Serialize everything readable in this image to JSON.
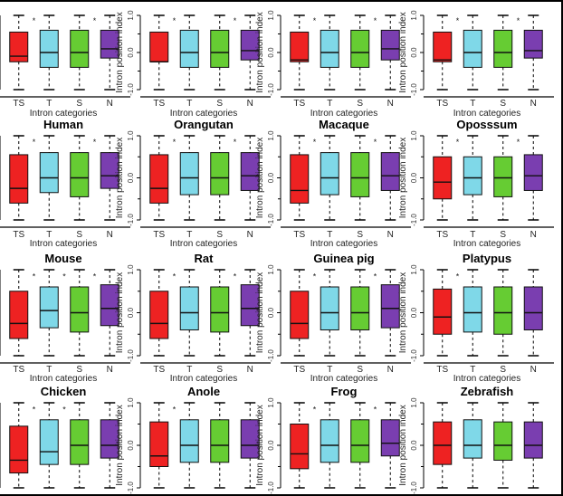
{
  "figure": {
    "ylabel": "Intron position index",
    "xlabel": "Intron categories"
  },
  "colors": {
    "TS": "#ee2222",
    "T": "#7fd8e8",
    "S": "#66cc33",
    "N": "#7a3eb0"
  },
  "chart_data": [
    {
      "type": "boxplot",
      "title": "",
      "xlabel": "Intron categories",
      "ylabel": "Intron position index",
      "categories": [
        "TS",
        "T",
        "S",
        "N"
      ],
      "ylim": [
        -1.0,
        1.0
      ],
      "yticks": [
        "-1.0",
        "0.0",
        "1.0"
      ],
      "boxes": [
        {
          "q1": -0.25,
          "median": -0.1,
          "q3": 0.55,
          "lo": -1,
          "hi": 1
        },
        {
          "q1": -0.4,
          "median": 0.0,
          "q3": 0.6,
          "lo": -1,
          "hi": 1
        },
        {
          "q1": -0.4,
          "median": 0.0,
          "q3": 0.6,
          "lo": -1,
          "hi": 1
        },
        {
          "q1": -0.15,
          "median": 0.1,
          "q3": 0.6,
          "lo": -1,
          "hi": 1
        }
      ],
      "annotations": [
        {
          "between": [
            0,
            1
          ],
          "mark": "*"
        },
        {
          "between": [
            2,
            3
          ],
          "mark": "*"
        }
      ]
    },
    {
      "type": "boxplot",
      "title": "",
      "xlabel": "Intron categories",
      "ylabel": "Intron position index",
      "categories": [
        "TS",
        "T",
        "S",
        "N"
      ],
      "ylim": [
        -1.0,
        1.0
      ],
      "yticks": [
        "-1.0",
        "0.0",
        "1.0"
      ],
      "boxes": [
        {
          "q1": -0.25,
          "median": -0.25,
          "q3": 0.55,
          "lo": -1,
          "hi": 1
        },
        {
          "q1": -0.4,
          "median": 0.0,
          "q3": 0.6,
          "lo": -1,
          "hi": 1
        },
        {
          "q1": -0.4,
          "median": 0.0,
          "q3": 0.6,
          "lo": -1,
          "hi": 1
        },
        {
          "q1": -0.2,
          "median": 0.05,
          "q3": 0.6,
          "lo": -1,
          "hi": 1
        }
      ],
      "annotations": [
        {
          "between": [
            0,
            1
          ],
          "mark": "*"
        },
        {
          "between": [
            2,
            3
          ],
          "mark": "*"
        }
      ]
    },
    {
      "type": "boxplot",
      "title": "",
      "xlabel": "Intron categories",
      "ylabel": "Intron position index",
      "categories": [
        "TS",
        "T",
        "S",
        "N"
      ],
      "ylim": [
        -1.0,
        1.0
      ],
      "yticks": [
        "-1.0",
        "0.0",
        "1.0"
      ],
      "boxes": [
        {
          "q1": -0.25,
          "median": -0.2,
          "q3": 0.55,
          "lo": -1,
          "hi": 1
        },
        {
          "q1": -0.4,
          "median": 0.0,
          "q3": 0.6,
          "lo": -1,
          "hi": 1
        },
        {
          "q1": -0.4,
          "median": 0.0,
          "q3": 0.6,
          "lo": -1,
          "hi": 1
        },
        {
          "q1": -0.2,
          "median": 0.1,
          "q3": 0.6,
          "lo": -1,
          "hi": 1
        }
      ],
      "annotations": [
        {
          "between": [
            0,
            1
          ],
          "mark": "*"
        },
        {
          "between": [
            2,
            3
          ],
          "mark": "*"
        }
      ]
    },
    {
      "type": "boxplot",
      "title": "",
      "xlabel": "Intron categories",
      "ylabel": "Intron position index",
      "categories": [
        "TS",
        "T",
        "S",
        "N"
      ],
      "ylim": [
        -1.0,
        1.0
      ],
      "yticks": [
        "-1.0",
        "0.0",
        "1.0"
      ],
      "boxes": [
        {
          "q1": -0.25,
          "median": -0.2,
          "q3": 0.55,
          "lo": -1,
          "hi": 1
        },
        {
          "q1": -0.4,
          "median": 0.0,
          "q3": 0.6,
          "lo": -1,
          "hi": 1
        },
        {
          "q1": -0.4,
          "median": 0.0,
          "q3": 0.6,
          "lo": -1,
          "hi": 1
        },
        {
          "q1": -0.15,
          "median": 0.05,
          "q3": 0.6,
          "lo": -1,
          "hi": 1
        }
      ],
      "annotations": [
        {
          "between": [
            0,
            1
          ],
          "mark": "*"
        },
        {
          "between": [
            2,
            3
          ],
          "mark": "*"
        }
      ]
    },
    {
      "type": "boxplot",
      "title": "Human",
      "xlabel": "Intron categories",
      "ylabel": "Intron position index",
      "categories": [
        "TS",
        "T",
        "S",
        "N"
      ],
      "ylim": [
        -1.0,
        1.0
      ],
      "yticks": [
        "-1.0",
        "0.0",
        "1.0"
      ],
      "boxes": [
        {
          "q1": -0.6,
          "median": -0.25,
          "q3": 0.55,
          "lo": -1,
          "hi": 1
        },
        {
          "q1": -0.35,
          "median": 0.0,
          "q3": 0.6,
          "lo": -1,
          "hi": 1
        },
        {
          "q1": -0.45,
          "median": 0.0,
          "q3": 0.6,
          "lo": -1,
          "hi": 1
        },
        {
          "q1": -0.25,
          "median": 0.05,
          "q3": 0.6,
          "lo": -1,
          "hi": 1
        }
      ],
      "annotations": [
        {
          "between": [
            0,
            1
          ],
          "mark": "*"
        },
        {
          "between": [
            2,
            3
          ],
          "mark": "*"
        }
      ]
    },
    {
      "type": "boxplot",
      "title": "Orangutan",
      "xlabel": "Intron categories",
      "ylabel": "Intron position index",
      "categories": [
        "TS",
        "T",
        "S",
        "N"
      ],
      "ylim": [
        -1.0,
        1.0
      ],
      "yticks": [
        "-1.0",
        "0.0",
        "1.0"
      ],
      "boxes": [
        {
          "q1": -0.6,
          "median": -0.25,
          "q3": 0.55,
          "lo": -1,
          "hi": 1
        },
        {
          "q1": -0.4,
          "median": 0.0,
          "q3": 0.6,
          "lo": -1,
          "hi": 1
        },
        {
          "q1": -0.4,
          "median": 0.0,
          "q3": 0.6,
          "lo": -1,
          "hi": 1
        },
        {
          "q1": -0.3,
          "median": 0.05,
          "q3": 0.6,
          "lo": -1,
          "hi": 1
        }
      ],
      "annotations": [
        {
          "between": [
            0,
            1
          ],
          "mark": "*"
        },
        {
          "between": [
            2,
            3
          ],
          "mark": "*"
        }
      ]
    },
    {
      "type": "boxplot",
      "title": "Macaque",
      "xlabel": "Intron categories",
      "ylabel": "Intron position index",
      "categories": [
        "TS",
        "T",
        "S",
        "N"
      ],
      "ylim": [
        -1.0,
        1.0
      ],
      "yticks": [
        "-1.0",
        "0.0",
        "1.0"
      ],
      "boxes": [
        {
          "q1": -0.6,
          "median": -0.3,
          "q3": 0.55,
          "lo": -1,
          "hi": 1
        },
        {
          "q1": -0.4,
          "median": 0.0,
          "q3": 0.6,
          "lo": -1,
          "hi": 1
        },
        {
          "q1": -0.45,
          "median": 0.0,
          "q3": 0.6,
          "lo": -1,
          "hi": 1
        },
        {
          "q1": -0.3,
          "median": 0.05,
          "q3": 0.6,
          "lo": -1,
          "hi": 1
        }
      ],
      "annotations": [
        {
          "between": [
            0,
            1
          ],
          "mark": "*"
        },
        {
          "between": [
            2,
            3
          ],
          "mark": "*"
        }
      ]
    },
    {
      "type": "boxplot",
      "title": "Oposssum",
      "xlabel": "Intron categories",
      "ylabel": "Intron position index",
      "categories": [
        "TS",
        "T",
        "S",
        "N"
      ],
      "ylim": [
        -1.0,
        1.0
      ],
      "yticks": [
        "-1.0",
        "0.0",
        "1.0"
      ],
      "boxes": [
        {
          "q1": -0.5,
          "median": -0.1,
          "q3": 0.5,
          "lo": -1,
          "hi": 1
        },
        {
          "q1": -0.4,
          "median": 0.0,
          "q3": 0.5,
          "lo": -1,
          "hi": 1
        },
        {
          "q1": -0.45,
          "median": 0.0,
          "q3": 0.5,
          "lo": -1,
          "hi": 1
        },
        {
          "q1": -0.3,
          "median": 0.05,
          "q3": 0.55,
          "lo": -1,
          "hi": 1
        }
      ],
      "annotations": [
        {
          "between": [
            0,
            1
          ],
          "mark": "*"
        },
        {
          "between": [
            2,
            3
          ],
          "mark": "*"
        }
      ]
    },
    {
      "type": "boxplot",
      "title": "Mouse",
      "xlabel": "Intron categories",
      "ylabel": "Intron position index",
      "categories": [
        "TS",
        "T",
        "S",
        "N"
      ],
      "ylim": [
        -1.0,
        1.0
      ],
      "yticks": [
        "-1.0",
        "0.0",
        "1.0"
      ],
      "boxes": [
        {
          "q1": -0.6,
          "median": -0.25,
          "q3": 0.5,
          "lo": -1,
          "hi": 1
        },
        {
          "q1": -0.35,
          "median": 0.05,
          "q3": 0.6,
          "lo": -1,
          "hi": 1
        },
        {
          "q1": -0.45,
          "median": 0.0,
          "q3": 0.6,
          "lo": -1,
          "hi": 1
        },
        {
          "q1": -0.3,
          "median": 0.1,
          "q3": 0.65,
          "lo": -1,
          "hi": 1
        }
      ],
      "annotations": [
        {
          "between": [
            0,
            1
          ],
          "mark": "*"
        },
        {
          "between": [
            1,
            2
          ],
          "mark": "*"
        },
        {
          "between": [
            2,
            3
          ],
          "mark": "*"
        }
      ]
    },
    {
      "type": "boxplot",
      "title": "Rat",
      "xlabel": "Intron categories",
      "ylabel": "Intron position index",
      "categories": [
        "TS",
        "T",
        "S",
        "N"
      ],
      "ylim": [
        -1.0,
        1.0
      ],
      "yticks": [
        "-1.0",
        "0.0",
        "1.0"
      ],
      "boxes": [
        {
          "q1": -0.6,
          "median": -0.25,
          "q3": 0.5,
          "lo": -1,
          "hi": 1
        },
        {
          "q1": -0.4,
          "median": 0.0,
          "q3": 0.6,
          "lo": -1,
          "hi": 1
        },
        {
          "q1": -0.45,
          "median": 0.0,
          "q3": 0.6,
          "lo": -1,
          "hi": 1
        },
        {
          "q1": -0.3,
          "median": 0.1,
          "q3": 0.65,
          "lo": -1,
          "hi": 1
        }
      ],
      "annotations": [
        {
          "between": [
            0,
            1
          ],
          "mark": "*"
        },
        {
          "between": [
            2,
            3
          ],
          "mark": "*"
        }
      ]
    },
    {
      "type": "boxplot",
      "title": "Guinea pig",
      "xlabel": "Intron categories",
      "ylabel": "Intron position index",
      "categories": [
        "TS",
        "T",
        "S",
        "N"
      ],
      "ylim": [
        -1.0,
        1.0
      ],
      "yticks": [
        "-1.0",
        "0.0",
        "1.0"
      ],
      "boxes": [
        {
          "q1": -0.6,
          "median": -0.25,
          "q3": 0.5,
          "lo": -1,
          "hi": 1
        },
        {
          "q1": -0.4,
          "median": 0.0,
          "q3": 0.6,
          "lo": -1,
          "hi": 1
        },
        {
          "q1": -0.4,
          "median": 0.0,
          "q3": 0.6,
          "lo": -1,
          "hi": 1
        },
        {
          "q1": -0.35,
          "median": 0.1,
          "q3": 0.65,
          "lo": -1,
          "hi": 1
        }
      ],
      "annotations": [
        {
          "between": [
            0,
            1
          ],
          "mark": "*"
        },
        {
          "between": [
            2,
            3
          ],
          "mark": "*"
        }
      ]
    },
    {
      "type": "boxplot",
      "title": "Platypus",
      "xlabel": "Intron categories",
      "ylabel": "Intron position index",
      "categories": [
        "TS",
        "T",
        "S",
        "N"
      ],
      "ylim": [
        -1.0,
        1.0
      ],
      "yticks": [
        "-1.0",
        "0.0",
        "1.0"
      ],
      "boxes": [
        {
          "q1": -0.5,
          "median": -0.1,
          "q3": 0.55,
          "lo": -1,
          "hi": 1
        },
        {
          "q1": -0.45,
          "median": 0.0,
          "q3": 0.6,
          "lo": -1,
          "hi": 1
        },
        {
          "q1": -0.5,
          "median": 0.0,
          "q3": 0.6,
          "lo": -1,
          "hi": 1
        },
        {
          "q1": -0.4,
          "median": 0.0,
          "q3": 0.6,
          "lo": -1,
          "hi": 1
        }
      ],
      "annotations": [
        {
          "between": [
            0,
            1
          ],
          "mark": "*"
        }
      ]
    },
    {
      "type": "boxplot",
      "title": "Chicken",
      "xlabel": "Intron categories",
      "ylabel": "Intron position index",
      "categories": [
        "TS",
        "T",
        "S",
        "N"
      ],
      "ylim": [
        -1.0,
        1.0
      ],
      "yticks": [
        "-1.0",
        "0.0",
        "1.0"
      ],
      "boxes": [
        {
          "q1": -0.65,
          "median": -0.35,
          "q3": 0.45,
          "lo": -1,
          "hi": 1
        },
        {
          "q1": -0.45,
          "median": -0.15,
          "q3": 0.6,
          "lo": -1,
          "hi": 1
        },
        {
          "q1": -0.45,
          "median": 0.0,
          "q3": 0.6,
          "lo": -1,
          "hi": 1
        },
        {
          "q1": -0.3,
          "median": 0.0,
          "q3": 0.6,
          "lo": -1,
          "hi": 1
        }
      ],
      "annotations": [
        {
          "between": [
            0,
            1
          ],
          "mark": "*"
        },
        {
          "between": [
            1,
            2
          ],
          "mark": "*"
        }
      ]
    },
    {
      "type": "boxplot",
      "title": "Anole",
      "xlabel": "Intron categories",
      "ylabel": "Intron position index",
      "categories": [
        "TS",
        "T",
        "S",
        "N"
      ],
      "ylim": [
        -1.0,
        1.0
      ],
      "yticks": [
        "-1.0",
        "0.0",
        "1.0"
      ],
      "boxes": [
        {
          "q1": -0.5,
          "median": -0.25,
          "q3": 0.55,
          "lo": -1,
          "hi": 1
        },
        {
          "q1": -0.4,
          "median": 0.0,
          "q3": 0.6,
          "lo": -1,
          "hi": 1
        },
        {
          "q1": -0.4,
          "median": 0.0,
          "q3": 0.6,
          "lo": -1,
          "hi": 1
        },
        {
          "q1": -0.3,
          "median": 0.0,
          "q3": 0.6,
          "lo": -1,
          "hi": 1
        }
      ],
      "annotations": [
        {
          "between": [
            0,
            1
          ],
          "mark": "*"
        }
      ]
    },
    {
      "type": "boxplot",
      "title": "Frog",
      "xlabel": "Intron categories",
      "ylabel": "Intron position index",
      "categories": [
        "TS",
        "T",
        "S",
        "N"
      ],
      "ylim": [
        -1.0,
        1.0
      ],
      "yticks": [
        "-1.0",
        "0.0",
        "1.0"
      ],
      "boxes": [
        {
          "q1": -0.55,
          "median": -0.2,
          "q3": 0.5,
          "lo": -1,
          "hi": 1
        },
        {
          "q1": -0.4,
          "median": 0.0,
          "q3": 0.6,
          "lo": -1,
          "hi": 1
        },
        {
          "q1": -0.4,
          "median": 0.0,
          "q3": 0.6,
          "lo": -1,
          "hi": 1
        },
        {
          "q1": -0.25,
          "median": 0.05,
          "q3": 0.6,
          "lo": -1,
          "hi": 1
        }
      ],
      "annotations": [
        {
          "between": [
            0,
            1
          ],
          "mark": "*"
        },
        {
          "between": [
            2,
            3
          ],
          "mark": "*"
        }
      ]
    },
    {
      "type": "boxplot",
      "title": "Zebrafish",
      "xlabel": "Intron categories",
      "ylabel": "Intron position index",
      "categories": [
        "TS",
        "T",
        "S",
        "N"
      ],
      "ylim": [
        -1.0,
        1.0
      ],
      "yticks": [
        "-1.0",
        "0.0",
        "1.0"
      ],
      "boxes": [
        {
          "q1": -0.45,
          "median": 0.0,
          "q3": 0.55,
          "lo": -1,
          "hi": 1
        },
        {
          "q1": -0.3,
          "median": 0.0,
          "q3": 0.6,
          "lo": -1,
          "hi": 1
        },
        {
          "q1": -0.35,
          "median": 0.0,
          "q3": 0.55,
          "lo": -1,
          "hi": 1
        },
        {
          "q1": -0.3,
          "median": 0.0,
          "q3": 0.55,
          "lo": -1,
          "hi": 1
        }
      ],
      "annotations": []
    }
  ]
}
